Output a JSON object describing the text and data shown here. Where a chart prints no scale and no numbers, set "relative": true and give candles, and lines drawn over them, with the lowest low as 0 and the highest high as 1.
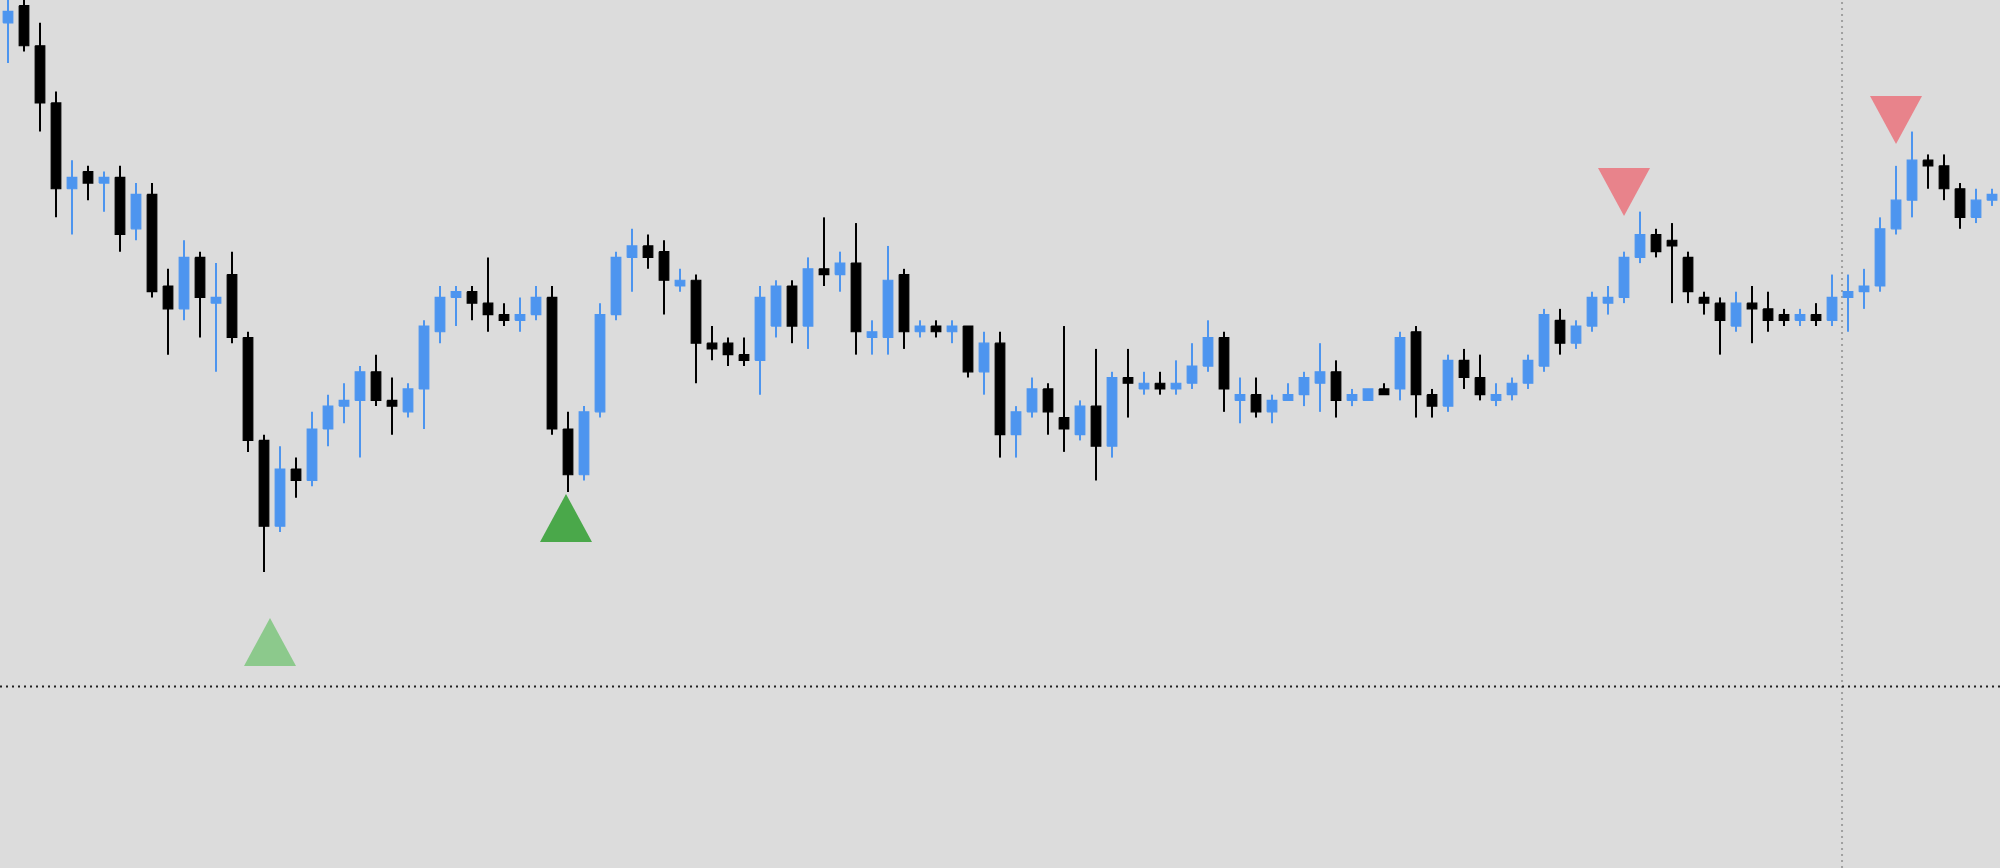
{
  "chart_data": {
    "type": "candlestick",
    "relative": true,
    "categories": [
      null,
      null,
      null,
      null,
      null,
      null,
      null,
      null,
      null,
      null,
      null,
      null,
      null,
      null,
      null,
      null,
      null,
      null,
      null,
      null,
      null,
      null,
      null,
      null,
      null,
      null,
      null,
      null,
      null,
      null,
      null,
      null,
      null,
      null,
      null,
      null,
      null,
      null,
      null,
      null,
      null,
      null,
      null,
      null,
      null,
      null,
      null,
      null,
      null,
      null,
      null,
      null,
      null,
      null,
      null,
      null,
      null,
      null,
      null,
      null,
      null,
      null,
      null,
      null,
      null,
      null,
      null,
      null,
      null,
      null,
      null,
      null,
      null,
      null,
      null,
      null,
      null,
      null,
      null,
      null,
      null,
      null,
      null,
      null,
      null,
      null,
      null,
      null,
      null,
      null,
      null,
      null,
      null,
      null,
      null,
      null,
      null,
      null,
      null,
      null,
      null,
      null,
      null,
      null,
      null,
      null,
      null,
      null,
      null,
      null,
      null,
      null,
      null,
      null,
      null,
      null,
      null,
      null,
      null,
      null,
      null,
      null,
      null,
      null,
      null
    ],
    "ohlc": [
      [
        0.96,
        1.0,
        0.89,
        0.98
      ],
      [
        0.99,
        1.0,
        0.91,
        0.92
      ],
      [
        0.92,
        0.96,
        0.77,
        0.82
      ],
      [
        0.82,
        0.84,
        0.62,
        0.67
      ],
      [
        0.67,
        0.72,
        0.59,
        0.69
      ],
      [
        0.7,
        0.71,
        0.65,
        0.68
      ],
      [
        0.68,
        0.7,
        0.63,
        0.69
      ],
      [
        0.69,
        0.71,
        0.56,
        0.59
      ],
      [
        0.6,
        0.68,
        0.58,
        0.66
      ],
      [
        0.66,
        0.68,
        0.48,
        0.49
      ],
      [
        0.5,
        0.53,
        0.38,
        0.46
      ],
      [
        0.46,
        0.58,
        0.44,
        0.55
      ],
      [
        0.55,
        0.56,
        0.41,
        0.48
      ],
      [
        0.47,
        0.54,
        0.35,
        0.48
      ],
      [
        0.52,
        0.56,
        0.4,
        0.41
      ],
      [
        0.41,
        0.42,
        0.21,
        0.23
      ],
      [
        0.23,
        0.24,
        0.0,
        0.08
      ],
      [
        0.08,
        0.22,
        0.07,
        0.18
      ],
      [
        0.18,
        0.2,
        0.13,
        0.16
      ],
      [
        0.16,
        0.28,
        0.15,
        0.25
      ],
      [
        0.25,
        0.31,
        0.22,
        0.29
      ],
      [
        0.29,
        0.33,
        0.26,
        0.3
      ],
      [
        0.3,
        0.36,
        0.2,
        0.35
      ],
      [
        0.35,
        0.38,
        0.29,
        0.3
      ],
      [
        0.3,
        0.34,
        0.24,
        0.29
      ],
      [
        0.28,
        0.33,
        0.27,
        0.32
      ],
      [
        0.32,
        0.44,
        0.25,
        0.43
      ],
      [
        0.42,
        0.5,
        0.4,
        0.48
      ],
      [
        0.48,
        0.5,
        0.43,
        0.49
      ],
      [
        0.49,
        0.5,
        0.44,
        0.47
      ],
      [
        0.47,
        0.55,
        0.42,
        0.45
      ],
      [
        0.45,
        0.47,
        0.43,
        0.44
      ],
      [
        0.44,
        0.48,
        0.42,
        0.45
      ],
      [
        0.45,
        0.5,
        0.44,
        0.48
      ],
      [
        0.48,
        0.5,
        0.24,
        0.25
      ],
      [
        0.25,
        0.28,
        0.14,
        0.17
      ],
      [
        0.17,
        0.29,
        0.16,
        0.28
      ],
      [
        0.28,
        0.47,
        0.27,
        0.45
      ],
      [
        0.45,
        0.56,
        0.44,
        0.55
      ],
      [
        0.55,
        0.6,
        0.49,
        0.57
      ],
      [
        0.57,
        0.59,
        0.53,
        0.55
      ],
      [
        0.56,
        0.58,
        0.45,
        0.51
      ],
      [
        0.5,
        0.53,
        0.49,
        0.51
      ],
      [
        0.51,
        0.52,
        0.33,
        0.4
      ],
      [
        0.4,
        0.43,
        0.37,
        0.39
      ],
      [
        0.4,
        0.41,
        0.36,
        0.38
      ],
      [
        0.38,
        0.41,
        0.36,
        0.37
      ],
      [
        0.37,
        0.5,
        0.31,
        0.48
      ],
      [
        0.43,
        0.51,
        0.41,
        0.5
      ],
      [
        0.5,
        0.51,
        0.4,
        0.43
      ],
      [
        0.43,
        0.55,
        0.39,
        0.53
      ],
      [
        0.53,
        0.62,
        0.5,
        0.52
      ],
      [
        0.52,
        0.56,
        0.49,
        0.54
      ],
      [
        0.54,
        0.61,
        0.38,
        0.42
      ],
      [
        0.41,
        0.44,
        0.38,
        0.42
      ],
      [
        0.41,
        0.57,
        0.38,
        0.51
      ],
      [
        0.52,
        0.53,
        0.39,
        0.42
      ],
      [
        0.42,
        0.44,
        0.41,
        0.43
      ],
      [
        0.43,
        0.44,
        0.41,
        0.42
      ],
      [
        0.42,
        0.44,
        0.4,
        0.43
      ],
      [
        0.43,
        0.43,
        0.34,
        0.35
      ],
      [
        0.35,
        0.42,
        0.31,
        0.4
      ],
      [
        0.4,
        0.42,
        0.2,
        0.24
      ],
      [
        0.24,
        0.29,
        0.2,
        0.28
      ],
      [
        0.28,
        0.34,
        0.27,
        0.32
      ],
      [
        0.32,
        0.33,
        0.24,
        0.28
      ],
      [
        0.27,
        0.43,
        0.21,
        0.25
      ],
      [
        0.24,
        0.3,
        0.23,
        0.29
      ],
      [
        0.29,
        0.39,
        0.16,
        0.22
      ],
      [
        0.22,
        0.35,
        0.2,
        0.34
      ],
      [
        0.34,
        0.39,
        0.27,
        0.33
      ],
      [
        0.32,
        0.35,
        0.31,
        0.33
      ],
      [
        0.33,
        0.35,
        0.31,
        0.32
      ],
      [
        0.32,
        0.37,
        0.31,
        0.33
      ],
      [
        0.33,
        0.4,
        0.32,
        0.36
      ],
      [
        0.36,
        0.44,
        0.35,
        0.41
      ],
      [
        0.41,
        0.42,
        0.28,
        0.32
      ],
      [
        0.3,
        0.34,
        0.26,
        0.31
      ],
      [
        0.31,
        0.34,
        0.27,
        0.28
      ],
      [
        0.28,
        0.31,
        0.26,
        0.3
      ],
      [
        0.3,
        0.33,
        0.3,
        0.31
      ],
      [
        0.31,
        0.35,
        0.29,
        0.34
      ],
      [
        0.33,
        0.4,
        0.28,
        0.35
      ],
      [
        0.35,
        0.37,
        0.27,
        0.3
      ],
      [
        0.3,
        0.32,
        0.29,
        0.31
      ],
      [
        0.3,
        0.32,
        0.3,
        0.32
      ],
      [
        0.32,
        0.33,
        0.31,
        0.31
      ],
      [
        0.32,
        0.42,
        0.3,
        0.41
      ],
      [
        0.42,
        0.43,
        0.27,
        0.31
      ],
      [
        0.31,
        0.32,
        0.27,
        0.29
      ],
      [
        0.29,
        0.38,
        0.28,
        0.37
      ],
      [
        0.37,
        0.39,
        0.32,
        0.34
      ],
      [
        0.34,
        0.38,
        0.3,
        0.31
      ],
      [
        0.3,
        0.33,
        0.29,
        0.31
      ],
      [
        0.31,
        0.34,
        0.3,
        0.33
      ],
      [
        0.33,
        0.38,
        0.32,
        0.37
      ],
      [
        0.36,
        0.46,
        0.35,
        0.45
      ],
      [
        0.44,
        0.46,
        0.38,
        0.4
      ],
      [
        0.4,
        0.44,
        0.39,
        0.43
      ],
      [
        0.43,
        0.49,
        0.42,
        0.48
      ],
      [
        0.47,
        0.5,
        0.45,
        0.48
      ],
      [
        0.48,
        0.56,
        0.47,
        0.55
      ],
      [
        0.55,
        0.63,
        0.54,
        0.59
      ],
      [
        0.59,
        0.6,
        0.55,
        0.56
      ],
      [
        0.58,
        0.61,
        0.47,
        0.57
      ],
      [
        0.55,
        0.56,
        0.47,
        0.49
      ],
      [
        0.48,
        0.49,
        0.45,
        0.47
      ],
      [
        0.47,
        0.48,
        0.38,
        0.44
      ],
      [
        0.43,
        0.49,
        0.42,
        0.47
      ],
      [
        0.47,
        0.5,
        0.4,
        0.46
      ],
      [
        0.46,
        0.49,
        0.42,
        0.44
      ],
      [
        0.45,
        0.46,
        0.43,
        0.44
      ],
      [
        0.44,
        0.46,
        0.43,
        0.45
      ],
      [
        0.45,
        0.47,
        0.43,
        0.44
      ],
      [
        0.44,
        0.52,
        0.43,
        0.48
      ],
      [
        0.48,
        0.52,
        0.42,
        0.49
      ],
      [
        0.49,
        0.53,
        0.46,
        0.5
      ],
      [
        0.5,
        0.62,
        0.49,
        0.6
      ],
      [
        0.6,
        0.71,
        0.59,
        0.65
      ],
      [
        0.65,
        0.77,
        0.62,
        0.72
      ],
      [
        0.72,
        0.73,
        0.67,
        0.71
      ],
      [
        0.71,
        0.73,
        0.65,
        0.67
      ],
      [
        0.67,
        0.68,
        0.6,
        0.62
      ],
      [
        0.62,
        0.67,
        0.61,
        0.65
      ],
      [
        0.65,
        0.67,
        0.64,
        0.66
      ]
    ],
    "colors": [
      "#4d95ef",
      "#000000",
      "#000000",
      "#000000",
      "#4d95ef",
      "#000000",
      "#4d95ef",
      "#000000",
      "#4d95ef",
      "#000000",
      "#000000",
      "#4d95ef",
      "#000000",
      "#4d95ef",
      "#000000",
      "#000000",
      "#000000",
      "#4d95ef",
      "#000000",
      "#4d95ef",
      "#4d95ef",
      "#4d95ef",
      "#4d95ef",
      "#000000",
      "#000000",
      "#4d95ef",
      "#4d95ef",
      "#4d95ef",
      "#4d95ef",
      "#000000",
      "#000000",
      "#000000",
      "#4d95ef",
      "#4d95ef",
      "#000000",
      "#000000",
      "#4d95ef",
      "#4d95ef",
      "#4d95ef",
      "#4d95ef",
      "#000000",
      "#000000",
      "#4d95ef",
      "#000000",
      "#000000",
      "#000000",
      "#000000",
      "#4d95ef",
      "#4d95ef",
      "#000000",
      "#4d95ef",
      "#000000",
      "#4d95ef",
      "#000000",
      "#4d95ef",
      "#4d95ef",
      "#000000",
      "#4d95ef",
      "#000000",
      "#4d95ef",
      "#000000",
      "#4d95ef",
      "#000000",
      "#4d95ef",
      "#4d95ef",
      "#000000",
      "#000000",
      "#4d95ef",
      "#000000",
      "#4d95ef",
      "#000000",
      "#4d95ef",
      "#000000",
      "#4d95ef",
      "#4d95ef",
      "#4d95ef",
      "#000000",
      "#4d95ef",
      "#000000",
      "#4d95ef",
      "#4d95ef",
      "#4d95ef",
      "#4d95ef",
      "#000000",
      "#4d95ef",
      "#4d95ef",
      "#000000",
      "#4d95ef",
      "#000000",
      "#000000",
      "#4d95ef",
      "#000000",
      "#000000",
      "#4d95ef",
      "#4d95ef",
      "#4d95ef",
      "#4d95ef",
      "#000000",
      "#4d95ef",
      "#4d95ef",
      "#4d95ef",
      "#4d95ef",
      "#4d95ef",
      "#000000",
      "#000000",
      "#000000",
      "#000000",
      "#000000",
      "#4d95ef",
      "#000000",
      "#000000",
      "#000000",
      "#4d95ef",
      "#000000",
      "#4d95ef",
      "#4d95ef",
      "#4d95ef",
      "#4d95ef",
      "#4d95ef",
      "#4d95ef",
      "#000000",
      "#000000",
      "#000000",
      "#4d95ef",
      "#4d95ef"
    ],
    "ref_lines": [
      {
        "axis": "y",
        "value": -0.2,
        "color": "#202020",
        "line_style": "dotted"
      }
    ]
  }
}
